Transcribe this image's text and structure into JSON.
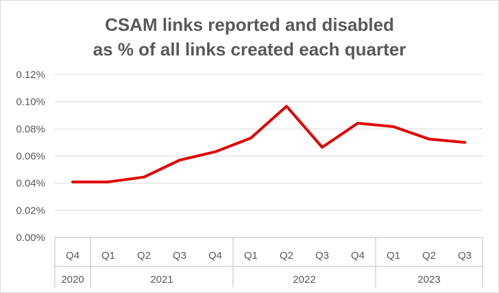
{
  "chart_data": {
    "type": "line",
    "title_lines": [
      "CSAM links reported and disabled",
      "as % of all links created each quarter"
    ],
    "xlabel": "",
    "ylabel": "",
    "categories": [
      "Q4",
      "Q1",
      "Q2",
      "Q3",
      "Q4",
      "Q1",
      "Q2",
      "Q3",
      "Q4",
      "Q1",
      "Q2",
      "Q3"
    ],
    "groups": [
      {
        "label": "2020",
        "span": 1
      },
      {
        "label": "2021",
        "span": 4
      },
      {
        "label": "2022",
        "span": 4
      },
      {
        "label": "2023",
        "span": 3
      }
    ],
    "y_ticks": [
      "0.00%",
      "0.02%",
      "0.04%",
      "0.06%",
      "0.08%",
      "0.10%",
      "0.12%"
    ],
    "ylim": [
      0,
      0.12
    ],
    "grid": true,
    "legend": "none",
    "series": [
      {
        "values": [
          0.041,
          0.041,
          0.0445,
          0.057,
          0.0632,
          0.0733,
          0.0967,
          0.0665,
          0.0842,
          0.0817,
          0.0725,
          0.0701
        ],
        "color": "#e00000"
      }
    ]
  }
}
